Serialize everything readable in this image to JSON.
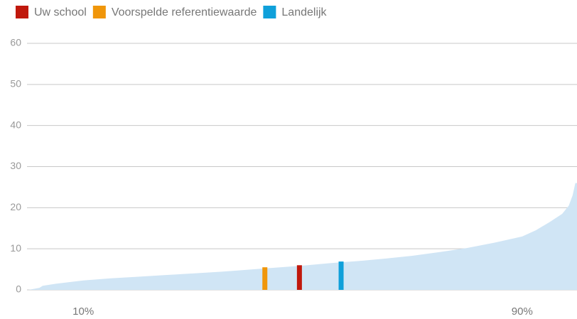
{
  "chart_data": {
    "type": "area",
    "color": "#d0e5f5",
    "x": [
      0,
      2,
      2.6,
      5,
      10,
      15,
      20,
      25,
      30,
      35,
      40,
      45,
      50,
      55,
      60,
      65,
      70,
      75,
      80,
      85,
      90,
      92.5,
      95,
      97.3,
      98.5,
      99.2,
      99.7,
      100
    ],
    "values": [
      0,
      0.5,
      1,
      1.5,
      2.3,
      2.8,
      3.2,
      3.6,
      4.0,
      4.4,
      4.9,
      5.4,
      5.9,
      6.5,
      7.0,
      7.6,
      8.3,
      9.2,
      10.2,
      11.5,
      13.0,
      14.5,
      16.5,
      18.5,
      20.5,
      23,
      26,
      26
    ],
    "series": [
      {
        "name": "Uw school",
        "color": "#c0180c",
        "x": [
          49.4
        ],
        "values": [
          6.0
        ]
      },
      {
        "name": "Voorspelde referentiewaarde",
        "color": "#f0960a",
        "x": [
          43.1
        ],
        "values": [
          5.5
        ]
      },
      {
        "name": "Landelijk",
        "color": "#0fa0da",
        "x": [
          57.0
        ],
        "values": [
          6.9
        ]
      }
    ],
    "xlim": [
      0,
      100
    ],
    "ylim": [
      0,
      60
    ],
    "yticks": [
      0,
      10,
      20,
      30,
      40,
      50,
      60
    ],
    "xticks": [
      {
        "value": 10,
        "label": "10%"
      },
      {
        "value": 90,
        "label": "90%"
      }
    ],
    "grid": true
  }
}
